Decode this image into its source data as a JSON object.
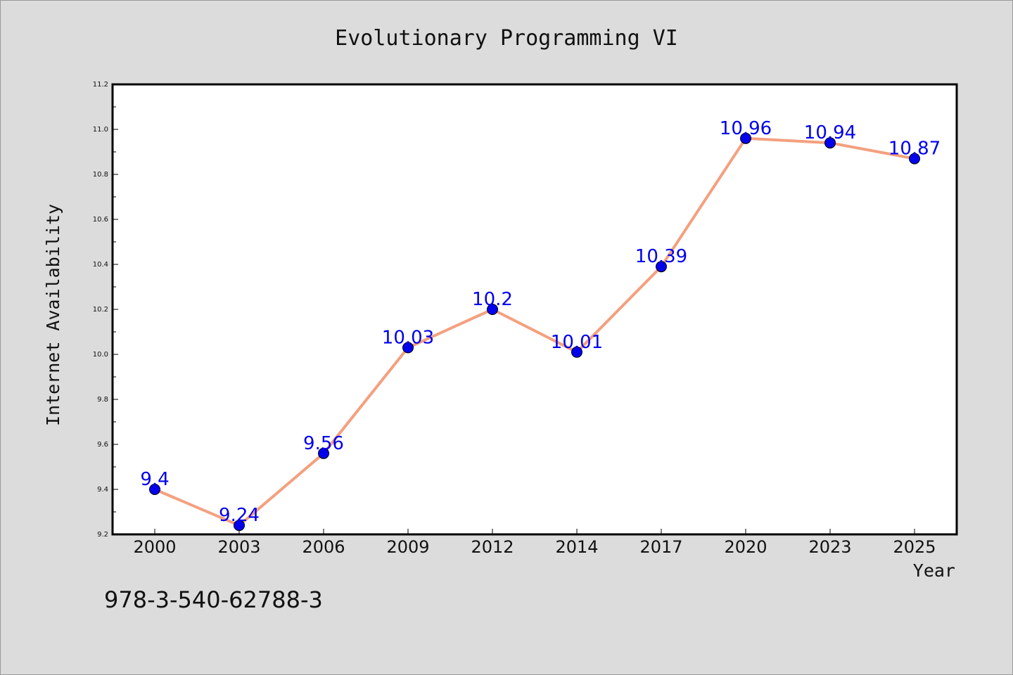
{
  "chart_data": {
    "type": "line",
    "title": "Evolutionary Programming VI",
    "xlabel": "Year",
    "ylabel": "Internet Availability",
    "categories": [
      "2000",
      "2003",
      "2006",
      "2009",
      "2012",
      "2014",
      "2017",
      "2020",
      "2023",
      "2025"
    ],
    "series": [
      {
        "values": [
          9.4,
          9.24,
          9.56,
          10.03,
          10.2,
          10.01,
          10.39,
          10.96,
          10.94,
          10.87
        ],
        "line_color": "#f4a07e",
        "marker_color": "#0000ee",
        "label_color": "#0000ee"
      }
    ],
    "data_labels": [
      "9.4",
      "9.24",
      "9.56",
      "10.03",
      "10.2",
      "10.01",
      "10.39",
      "10.96",
      "10.94",
      "10.87"
    ],
    "ylim": [
      9.2,
      11.2
    ],
    "yticks": [
      "9.2",
      "9.4",
      "9.6",
      "9.8",
      "10.0",
      "10.2",
      "10.4",
      "10.6",
      "10.8",
      "11.0",
      "11.2"
    ],
    "grid": false,
    "legend": "none"
  },
  "footer": {
    "text": "978-3-540-62788-3"
  }
}
